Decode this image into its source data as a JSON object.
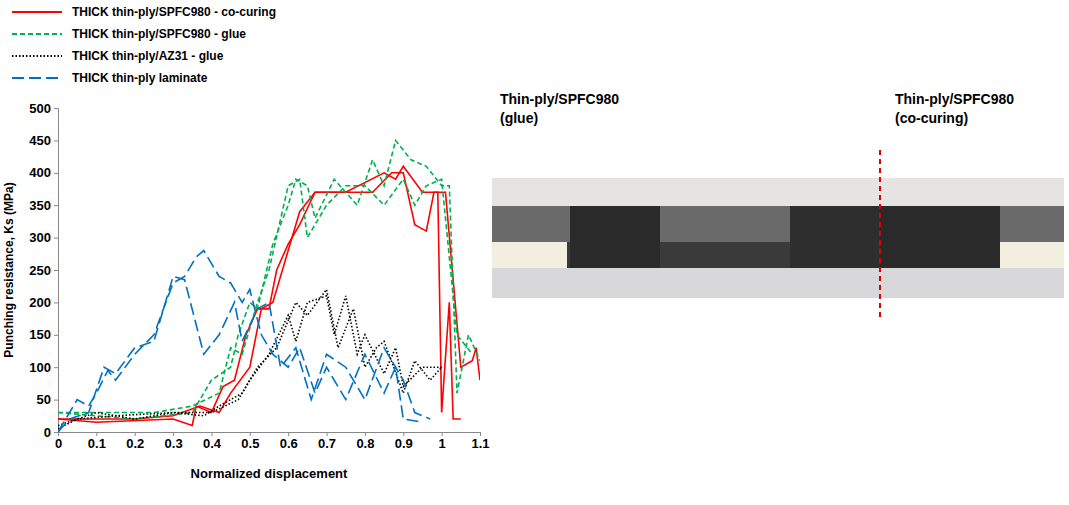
{
  "chart_data": {
    "type": "line",
    "x_label": "Normalized displacement",
    "y_label": "Punching resistance, Ks (MPa)",
    "xlim": [
      0,
      1.1
    ],
    "xticks": [
      0,
      0.1,
      0.2,
      0.3,
      0.4,
      0.5,
      0.6,
      0.7,
      0.8,
      0.9,
      1,
      1.1
    ],
    "ylim": [
      0,
      500
    ],
    "yticks": [
      0,
      50,
      100,
      150,
      200,
      250,
      300,
      350,
      400,
      450,
      500
    ],
    "grid": false,
    "legend": "top",
    "annotations": [
      "Thin-ply/SPFC980 (glue)",
      "Thin-ply/SPFC980 (co-curing)"
    ],
    "series": [
      {
        "name": "THICK thin-ply/SPFC980 - co-curing",
        "color": "#ff0000",
        "line_style": "solid",
        "curves": [
          {
            "x": [
              0,
              0.1,
              0.3,
              0.35,
              0.36,
              0.4,
              0.43,
              0.46,
              0.49,
              0.52,
              0.55,
              0.57,
              0.6,
              0.63,
              0.67,
              0.75,
              0.85,
              0.88,
              0.9,
              0.95,
              0.99,
              1.0,
              1.02,
              1.03,
              1.05
            ],
            "values": [
              20,
              15,
              20,
              10,
              40,
              30,
              70,
              80,
              150,
              190,
              190,
              250,
              290,
              320,
              370,
              370,
              400,
              390,
              410,
              370,
              370,
              30,
              200,
              20,
              20
            ]
          },
          {
            "x": [
              0,
              0.2,
              0.3,
              0.37,
              0.42,
              0.45,
              0.5,
              0.53,
              0.56,
              0.6,
              0.63,
              0.67,
              0.82,
              0.87,
              0.9,
              0.93,
              0.96,
              0.98,
              1.01,
              1.05,
              1.08,
              1.09,
              1.1
            ],
            "values": [
              20,
              20,
              25,
              40,
              30,
              60,
              100,
              190,
              200,
              280,
              340,
              370,
              370,
              400,
              400,
              320,
              310,
              370,
              370,
              100,
              110,
              130,
              80
            ]
          }
        ]
      },
      {
        "name": "THICK thin-ply/SPFC980 - glue",
        "color": "#00b050",
        "line_style": "dashed",
        "curves": [
          {
            "x": [
              0,
              0.2,
              0.35,
              0.4,
              0.45,
              0.47,
              0.5,
              0.52,
              0.56,
              0.6,
              0.62,
              0.65,
              0.67,
              0.72,
              0.78,
              0.82,
              0.85,
              0.88,
              0.92,
              0.96,
              1.0,
              1.02,
              1.04,
              1.07,
              1.1
            ],
            "values": [
              30,
              20,
              30,
              80,
              100,
              150,
              200,
              190,
              290,
              350,
              390,
              380,
              330,
              390,
              350,
              420,
              380,
              450,
              420,
              410,
              380,
              380,
              60,
              150,
              110
            ]
          },
          {
            "x": [
              0,
              0.25,
              0.35,
              0.42,
              0.45,
              0.48,
              0.5,
              0.52,
              0.55,
              0.6,
              0.63,
              0.65,
              0.7,
              0.75,
              0.8,
              0.85,
              0.9,
              0.93,
              0.96,
              1.0,
              1.04,
              1.08
            ],
            "values": [
              30,
              30,
              40,
              60,
              130,
              120,
              160,
              200,
              250,
              380,
              390,
              300,
              350,
              380,
              380,
              350,
              390,
              350,
              380,
              390,
              150,
              120
            ]
          }
        ]
      },
      {
        "name": "THICK thin-ply/AZ31 - glue",
        "color": "#000000",
        "line_style": "dotted",
        "curves": [
          {
            "x": [
              0,
              0.1,
              0.2,
              0.3,
              0.38,
              0.42,
              0.48,
              0.5,
              0.55,
              0.6,
              0.62,
              0.65,
              0.7,
              0.72,
              0.75,
              0.78,
              0.8,
              0.85,
              0.88,
              0.9,
              0.95,
              1.0
            ],
            "values": [
              10,
              30,
              20,
              30,
              25,
              40,
              60,
              80,
              120,
              180,
              140,
              200,
              210,
              150,
              210,
              120,
              150,
              90,
              130,
              70,
              100,
              100
            ]
          },
          {
            "x": [
              0,
              0.05,
              0.15,
              0.3,
              0.4,
              0.47,
              0.52,
              0.57,
              0.62,
              0.65,
              0.7,
              0.73,
              0.77,
              0.8,
              0.83,
              0.85,
              0.9,
              0.93,
              0.97,
              1.0
            ],
            "values": [
              5,
              20,
              25,
              30,
              30,
              50,
              100,
              130,
              200,
              180,
              220,
              130,
              190,
              100,
              130,
              140,
              60,
              110,
              80,
              100
            ]
          }
        ]
      },
      {
        "name": "THICK thin-ply laminate",
        "color": "#0070c0",
        "line_style": "longdash",
        "curves": [
          {
            "x": [
              0,
              0.02,
              0.05,
              0.08,
              0.1,
              0.13,
              0.15,
              0.2,
              0.25,
              0.3,
              0.33,
              0.36,
              0.38,
              0.42,
              0.45,
              0.48,
              0.5,
              0.53,
              0.56,
              0.6,
              0.63,
              0.67,
              0.7,
              0.75,
              0.8,
              0.85,
              0.88,
              0.9,
              0.95
            ],
            "values": [
              0,
              20,
              50,
              40,
              60,
              95,
              80,
              120,
              150,
              230,
              240,
              270,
              280,
              240,
              230,
              200,
              220,
              150,
              120,
              100,
              130,
              60,
              100,
              50,
              120,
              60,
              100,
              20,
              15
            ]
          },
          {
            "x": [
              0,
              0.03,
              0.08,
              0.12,
              0.15,
              0.2,
              0.25,
              0.3,
              0.33,
              0.38,
              0.42,
              0.46,
              0.48,
              0.52,
              0.55,
              0.58,
              0.62,
              0.66,
              0.7,
              0.75,
              0.8,
              0.85,
              0.9,
              0.93,
              0.97
            ],
            "values": [
              0,
              20,
              30,
              100,
              90,
              130,
              140,
              240,
              235,
              120,
              150,
              200,
              140,
              190,
              200,
              100,
              130,
              50,
              120,
              100,
              50,
              130,
              80,
              30,
              20
            ]
          }
        ]
      }
    ]
  }
}
